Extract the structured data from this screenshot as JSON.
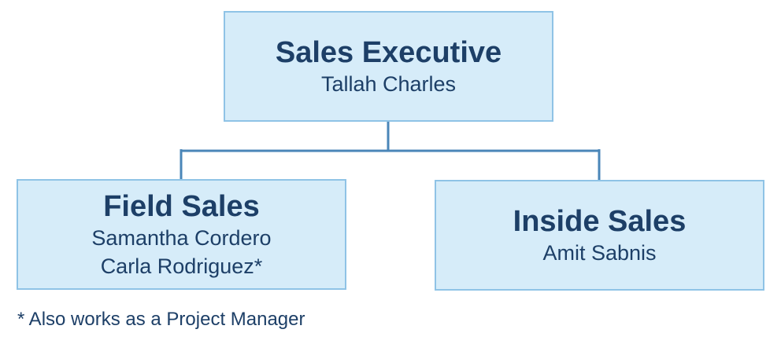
{
  "chart": {
    "root": {
      "title": "Sales Executive",
      "people": [
        "Tallah Charles"
      ]
    },
    "children": [
      {
        "title": "Field Sales",
        "people": [
          "Samantha Cordero",
          "Carla Rodriguez*"
        ]
      },
      {
        "title": "Inside Sales",
        "people": [
          "Amit Sabnis"
        ]
      }
    ]
  },
  "footnote": "* Also works as a Project Manager",
  "colors": {
    "box_fill": "#d6ecf9",
    "box_border": "#8fc3e6",
    "connector": "#4a86b8",
    "text": "#1d3f67"
  }
}
